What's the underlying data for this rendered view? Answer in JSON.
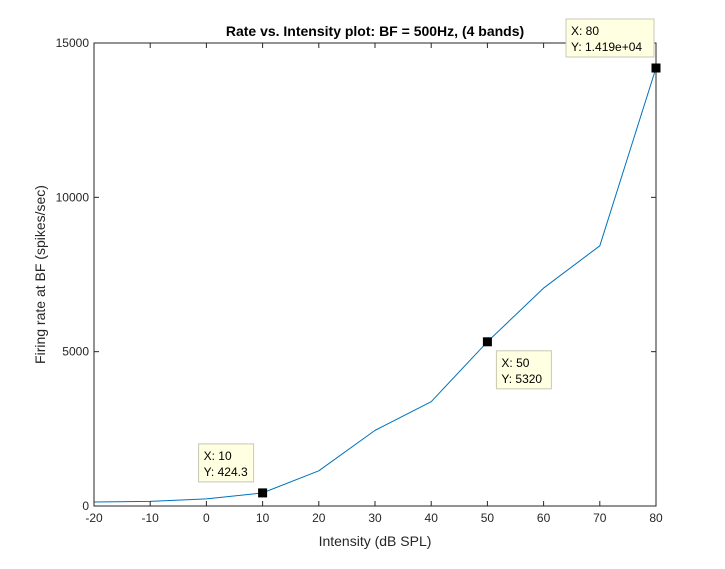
{
  "chart_data": {
    "type": "line",
    "title": "Rate vs. Intensity plot: BF = 500Hz, (4 bands)",
    "xlabel": "Intensity (dB SPL)",
    "ylabel": "Firing rate at BF (spikes/sec)",
    "xlim": [
      -20,
      80
    ],
    "ylim": [
      0,
      15000
    ],
    "xticks": [
      -20,
      -10,
      0,
      10,
      20,
      30,
      40,
      50,
      60,
      70,
      80
    ],
    "yticks": [
      0,
      5000,
      10000,
      15000
    ],
    "grid": false,
    "series": [
      {
        "color": "#0072BD",
        "x": [
          -20,
          -10,
          0,
          10,
          20,
          30,
          40,
          50,
          60,
          70,
          80
        ],
        "y": [
          130,
          150,
          230,
          424.3,
          1140,
          2450,
          3380,
          5320,
          7060,
          8430,
          14190
        ]
      }
    ],
    "datatips": [
      {
        "x_line": "X: 10",
        "y_line": "Y: 424.3",
        "x": 10,
        "y": 424.3,
        "placement": "above-left"
      },
      {
        "x_line": "X: 50",
        "y_line": "Y: 5320",
        "x": 50,
        "y": 5320,
        "placement": "below-right"
      },
      {
        "x_line": "X: 80",
        "y_line": "Y: 1.419e+04",
        "x": 80,
        "y": 14190,
        "placement": "above-left"
      }
    ]
  }
}
